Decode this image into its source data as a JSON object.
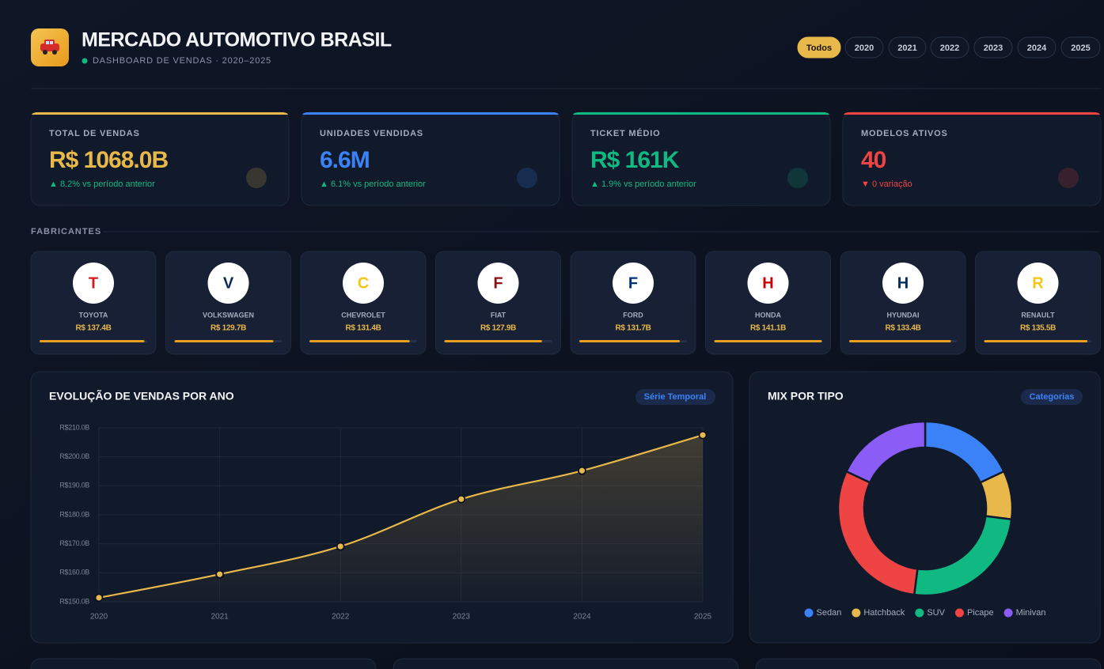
{
  "header": {
    "title": "MERCADO AUTOMOTIVO BRASIL",
    "subtitle": "DASHBOARD DE VENDAS · 2020–2025"
  },
  "filters": {
    "options": [
      "Todos",
      "2020",
      "2021",
      "2022",
      "2023",
      "2024",
      "2025"
    ],
    "active": 0
  },
  "kpis": [
    {
      "label": "TOTAL DE VENDAS",
      "value": "R$ 1068.0B",
      "change": "▲ 8.2% vs período anterior",
      "color": "#e8b84a",
      "change_color": "#10b981"
    },
    {
      "label": "UNIDADES VENDIDAS",
      "value": "6.6M",
      "change": "▲ 6.1% vs período anterior",
      "color": "#3b82f6",
      "change_color": "#10b981"
    },
    {
      "label": "TICKET MÉDIO",
      "value": "R$ 161K",
      "change": "▲ 1.9% vs período anterior",
      "color": "#10b981",
      "change_color": "#10b981"
    },
    {
      "label": "MODELOS ATIVOS",
      "value": "40",
      "change": "▼ 0 variação",
      "color": "#ef4444",
      "change_color": "#ef4444"
    }
  ],
  "manufacturers": {
    "title": "FABRICANTES",
    "letters": [
      "T",
      "V",
      "C",
      "F",
      "F",
      "H",
      "H",
      "R"
    ],
    "letter_colors": [
      "#d71920",
      "#0a2a5c",
      "#f5c518",
      "#8b0f14",
      "#003478",
      "#cc0000",
      "#002c5f",
      "#f5c518"
    ],
    "names": [
      "TOYOTA",
      "VOLKSWAGEN",
      "CHEVROLET",
      "FIAT",
      "FORD",
      "HONDA",
      "HYUNDAI",
      "RENAULT"
    ],
    "values": [
      137.4,
      129.7,
      131.4,
      127.9,
      131.7,
      141.1,
      133.4,
      135.5
    ],
    "value_labels": [
      "R$ 137.4B",
      "R$ 129.7B",
      "R$ 131.4B",
      "R$ 127.9B",
      "R$ 131.7B",
      "R$ 141.1B",
      "R$ 133.4B",
      "R$ 135.5B"
    ],
    "color": "#e8a020"
  },
  "chart_data": [
    {
      "type": "line",
      "title": "EVOLUÇÃO DE VENDAS POR ANO",
      "badge": "Série Temporal",
      "categories": [
        "2020",
        "2021",
        "2022",
        "2023",
        "2024",
        "2025"
      ],
      "values": [
        151.4,
        159.5,
        169.1,
        185.4,
        195.2,
        207.5
      ],
      "color": "#e8b84a",
      "grid": true,
      "ylim": [
        150,
        210
      ],
      "yticks": [
        {
          "value": 150,
          "label": "R$150.0B"
        },
        {
          "value": 160,
          "label": "R$160.0B"
        },
        {
          "value": 170,
          "label": "R$170.0B"
        },
        {
          "value": 180,
          "label": "R$180.0B"
        },
        {
          "value": 190,
          "label": "R$190.0B"
        },
        {
          "value": 200,
          "label": "R$200.0B"
        },
        {
          "value": 210,
          "label": "R$210.0B"
        }
      ]
    },
    {
      "type": "pie",
      "title": "MIX POR TIPO",
      "badge": "Categorias",
      "categories": [
        "Sedan",
        "Hatchback",
        "SUV",
        "Picape",
        "Minivan"
      ],
      "values": [
        18,
        9,
        25,
        30,
        18
      ],
      "colors": [
        "#3b82f6",
        "#e8b84a",
        "#10b981",
        "#ef4444",
        "#8b5cf6"
      ]
    }
  ]
}
